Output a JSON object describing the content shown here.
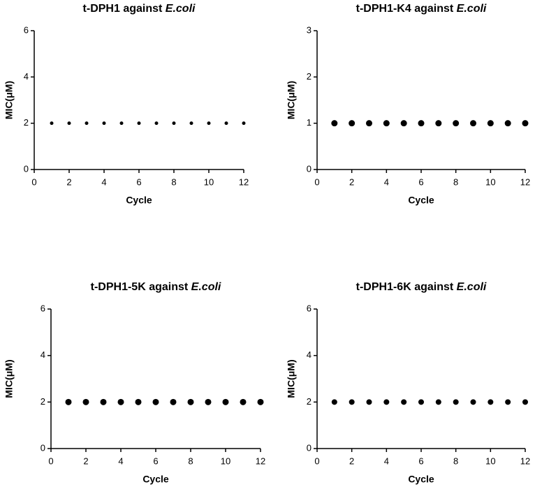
{
  "chart_data": [
    {
      "type": "scatter",
      "title": "t-DPH1 against",
      "title_organism": "E.coli",
      "x_label": "Cycle",
      "y_label": "MIC(μM)",
      "x": [
        1,
        2,
        3,
        4,
        5,
        6,
        7,
        8,
        9,
        10,
        11,
        12
      ],
      "values": [
        2,
        2,
        2,
        2,
        2,
        2,
        2,
        2,
        2,
        2,
        2,
        2
      ],
      "color": "#000000",
      "marker_size": 2.5,
      "xlim": [
        0,
        12
      ],
      "xticks": [
        0,
        2,
        4,
        6,
        8,
        10,
        12
      ],
      "ylim": [
        0,
        6
      ],
      "yticks": [
        0,
        2,
        4,
        6
      ]
    },
    {
      "type": "scatter",
      "title": "t-DPH1-K4 against",
      "title_organism": "E.coli",
      "x_label": "Cycle",
      "y_label": "MIC(μM)",
      "x": [
        1,
        2,
        3,
        4,
        5,
        6,
        7,
        8,
        9,
        10,
        11,
        12
      ],
      "values": [
        1,
        1,
        1,
        1,
        1,
        1,
        1,
        1,
        1,
        1,
        1,
        1
      ],
      "color": "#000000",
      "marker_size": 4.5,
      "xlim": [
        0,
        12
      ],
      "xticks": [
        0,
        2,
        4,
        6,
        8,
        10,
        12
      ],
      "ylim": [
        0,
        3
      ],
      "yticks": [
        0,
        1,
        2,
        3
      ]
    },
    {
      "type": "scatter",
      "title": "t-DPH1-5K against",
      "title_organism": "E.coli",
      "x_label": "Cycle",
      "y_label": "MIC(μM)",
      "x": [
        1,
        2,
        3,
        4,
        5,
        6,
        7,
        8,
        9,
        10,
        11,
        12
      ],
      "values": [
        2,
        2,
        2,
        2,
        2,
        2,
        2,
        2,
        2,
        2,
        2,
        2
      ],
      "color": "#000000",
      "marker_size": 4.5,
      "xlim": [
        0,
        12
      ],
      "xticks": [
        0,
        2,
        4,
        6,
        8,
        10,
        12
      ],
      "ylim": [
        0,
        6
      ],
      "yticks": [
        0,
        2,
        4,
        6
      ]
    },
    {
      "type": "scatter",
      "title": "t-DPH1-6K against",
      "title_organism": "E.coli",
      "x_label": "Cycle",
      "y_label": "MIC(μM)",
      "x": [
        1,
        2,
        3,
        4,
        5,
        6,
        7,
        8,
        9,
        10,
        11,
        12
      ],
      "values": [
        2,
        2,
        2,
        2,
        2,
        2,
        2,
        2,
        2,
        2,
        2,
        2
      ],
      "color": "#000000",
      "marker_size": 4,
      "xlim": [
        0,
        12
      ],
      "xticks": [
        0,
        2,
        4,
        6,
        8,
        10,
        12
      ],
      "ylim": [
        0,
        6
      ],
      "yticks": [
        0,
        2,
        4,
        6
      ]
    }
  ]
}
